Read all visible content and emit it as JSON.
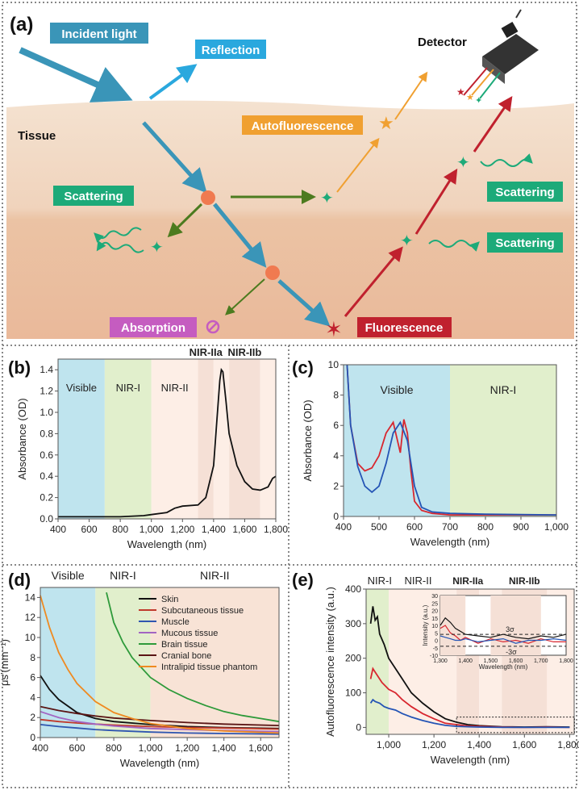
{
  "panels": {
    "a": {
      "label": "(a)",
      "incident": "Incident light",
      "reflection": "Reflection",
      "detector": "Detector",
      "tissue": "Tissue",
      "autofluorescence": "Autofluorescence",
      "scattering": "Scattering",
      "absorption": "Absorption",
      "fluorescence": "Fluorescence",
      "colors": {
        "skin_top": "#f2dcc6",
        "skin_bottom": "#ebc2a3",
        "incident": "#3a95b8",
        "reflection": "#2aa8de",
        "autofluor": "#f0a031",
        "scatter": "#1daa79",
        "absorption": "#c55cc0",
        "fluor": "#c0212e",
        "green_arrow": "#4c7b1f"
      }
    },
    "b": {
      "label": "(b)",
      "regions": [
        "Visible",
        "NIR-I",
        "NIR-II",
        "NIR-IIa",
        "NIR-IIb"
      ],
      "xlabel": "Wavelength (nm)",
      "ylabel": "Absorbance (OD)"
    },
    "c": {
      "label": "(c)",
      "regions": [
        "Visible",
        "NIR-I"
      ],
      "xlabel": "Wavelength (nm)",
      "ylabel": "Absorbance (OD)"
    },
    "d": {
      "label": "(d)",
      "regions": [
        "Visible",
        "NIR-I",
        "NIR-II"
      ],
      "xlabel": "Wavelength (nm)",
      "ylabel": "μs′(mm⁻¹)"
    },
    "e": {
      "label": "(e)",
      "regions": [
        "NIR-I",
        "NIR-II",
        "NIR-IIa",
        "NIR-IIb"
      ],
      "xlabel": "Wavelength (nm)",
      "ylabel": "Autofluorescence intensity (a.u.)",
      "inset_ylabel": "Intensity (a.u.)",
      "inset_xlabel": "Wavelength (nm)",
      "inset_marks": [
        "3σ",
        "-3σ"
      ]
    }
  },
  "chart_data": [
    {
      "panel": "b",
      "type": "line",
      "xlim": [
        400,
        1800
      ],
      "ylim": [
        0,
        1.5
      ],
      "xticks": [
        "400",
        "600",
        "800",
        "1,000",
        "1,200",
        "1,400",
        "1,600",
        "1,800"
      ],
      "yticks": [
        "0.0",
        "0.2",
        "0.4",
        "0.6",
        "0.8",
        "1.0",
        "1.2",
        "1.4"
      ],
      "region_bounds": [
        [
          400,
          700,
          "#bfe4ee"
        ],
        [
          700,
          1000,
          "#e1efcc"
        ],
        [
          1000,
          1300,
          "#fdeee6"
        ],
        [
          1300,
          1400,
          "#f5e0d6"
        ],
        [
          1400,
          1500,
          "#fdeee6"
        ],
        [
          1500,
          1700,
          "#f5e0d6"
        ],
        [
          1700,
          1800,
          "#fdeee6"
        ]
      ],
      "series": [
        {
          "color": "#111111",
          "x": [
            400,
            600,
            800,
            950,
            1000,
            1100,
            1150,
            1200,
            1300,
            1350,
            1400,
            1420,
            1440,
            1450,
            1460,
            1480,
            1500,
            1550,
            1600,
            1650,
            1700,
            1750,
            1780,
            1800
          ],
          "y": [
            0.02,
            0.02,
            0.02,
            0.03,
            0.04,
            0.06,
            0.1,
            0.12,
            0.13,
            0.2,
            0.5,
            0.9,
            1.3,
            1.4,
            1.38,
            1.1,
            0.8,
            0.5,
            0.35,
            0.28,
            0.27,
            0.3,
            0.38,
            0.4
          ]
        }
      ]
    },
    {
      "panel": "c",
      "type": "line",
      "xlim": [
        400,
        1000
      ],
      "ylim": [
        0,
        10
      ],
      "xticks": [
        "400",
        "500",
        "600",
        "700",
        "800",
        "900",
        "1,000"
      ],
      "yticks": [
        "0",
        "2",
        "4",
        "6",
        "8",
        "10"
      ],
      "region_bounds": [
        [
          400,
          700,
          "#bfe4ee"
        ],
        [
          700,
          1000,
          "#e1efcc"
        ]
      ],
      "series": [
        {
          "color": "#d8262e",
          "x": [
            410,
            420,
            440,
            460,
            480,
            500,
            520,
            540,
            550,
            560,
            570,
            580,
            590,
            600,
            620,
            650,
            700,
            800,
            1000
          ],
          "y": [
            10,
            6,
            3.5,
            3,
            3.2,
            4,
            5.5,
            6.2,
            5.2,
            4.2,
            6.4,
            5.5,
            3,
            1,
            0.4,
            0.2,
            0.1,
            0.1,
            0.1
          ]
        },
        {
          "color": "#2454b5",
          "x": [
            410,
            420,
            440,
            460,
            480,
            500,
            520,
            540,
            560,
            580,
            600,
            620,
            650,
            700,
            800,
            1000
          ],
          "y": [
            10,
            6,
            3.3,
            2,
            1.6,
            2,
            3.5,
            5.5,
            6.2,
            5,
            2,
            0.6,
            0.3,
            0.2,
            0.15,
            0.1
          ]
        }
      ]
    },
    {
      "panel": "d",
      "type": "line",
      "xlim": [
        400,
        1700
      ],
      "ylim": [
        0,
        15
      ],
      "xticks": [
        "400",
        "600",
        "800",
        "1,000",
        "1,200",
        "1,400",
        "1,600"
      ],
      "yticks": [
        "0",
        "2",
        "4",
        "6",
        "8",
        "10",
        "12",
        "14"
      ],
      "region_bounds": [
        [
          400,
          700,
          "#bfe4ee"
        ],
        [
          700,
          1000,
          "#e1efcc"
        ],
        [
          1000,
          1700,
          "#f8e3d6"
        ]
      ],
      "series": [
        {
          "name": "Skin",
          "color": "#111111",
          "x": [
            400,
            450,
            500,
            600,
            700,
            800,
            1000,
            1200,
            1400,
            1700
          ],
          "y": [
            6.2,
            4.8,
            3.8,
            2.5,
            1.9,
            1.6,
            1.3,
            1.1,
            1.0,
            0.9
          ]
        },
        {
          "name": "Subcutaneous tissue",
          "color": "#c0392b",
          "x": [
            400,
            500,
            600,
            700,
            800,
            1000,
            1200,
            1400,
            1700
          ],
          "y": [
            1.8,
            1.6,
            1.45,
            1.35,
            1.25,
            1.1,
            1.0,
            0.95,
            0.85
          ]
        },
        {
          "name": "Muscle",
          "color": "#2f56b0",
          "x": [
            400,
            500,
            600,
            700,
            800,
            1000,
            1200,
            1400,
            1700
          ],
          "y": [
            1.3,
            1.1,
            0.95,
            0.8,
            0.7,
            0.55,
            0.45,
            0.4,
            0.35
          ]
        },
        {
          "name": "Mucous tissue",
          "color": "#a265c2",
          "x": [
            400,
            500,
            600,
            700,
            800,
            1000,
            1200,
            1400,
            1700
          ],
          "y": [
            2.6,
            2.0,
            1.6,
            1.35,
            1.15,
            0.9,
            0.8,
            0.7,
            0.6
          ]
        },
        {
          "name": "Brain tissue",
          "color": "#2e9a3a",
          "x": [
            760,
            800,
            850,
            900,
            1000,
            1100,
            1200,
            1300,
            1400,
            1500,
            1600,
            1700
          ],
          "y": [
            14.5,
            11.5,
            9.5,
            8,
            6,
            4.8,
            3.9,
            3.2,
            2.6,
            2.2,
            1.9,
            1.6
          ]
        },
        {
          "name": "Cranial bone",
          "color": "#5a1515",
          "x": [
            400,
            500,
            600,
            700,
            800,
            1000,
            1200,
            1400,
            1700
          ],
          "y": [
            3.1,
            2.7,
            2.4,
            2.15,
            1.95,
            1.7,
            1.5,
            1.35,
            1.2
          ]
        },
        {
          "name": "Intralipid tissue phantom",
          "color": "#ef8a21",
          "x": [
            400,
            450,
            500,
            550,
            600,
            700,
            800,
            900,
            1000,
            1200,
            1400,
            1700
          ],
          "y": [
            14.2,
            11,
            8.5,
            6.8,
            5.4,
            3.6,
            2.5,
            1.9,
            1.4,
            0.9,
            0.65,
            0.45
          ]
        }
      ]
    },
    {
      "panel": "e",
      "type": "line",
      "xlim": [
        900,
        1820
      ],
      "ylim": [
        -20,
        400
      ],
      "xticks": [
        "1,000",
        "1,200",
        "1,400",
        "1,600",
        "1,800"
      ],
      "xtick_values": [
        1000,
        1200,
        1400,
        1600,
        1800
      ],
      "yticks": [
        "0",
        "100",
        "200",
        "300",
        "400"
      ],
      "region_bounds": [
        [
          900,
          1000,
          "#e1efcc"
        ],
        [
          1000,
          1300,
          "#fdeee6"
        ],
        [
          1300,
          1400,
          "#f5e0d6"
        ],
        [
          1400,
          1500,
          "#fdeee6"
        ],
        [
          1500,
          1700,
          "#f5e0d6"
        ],
        [
          1700,
          1820,
          "#fdeee6"
        ]
      ],
      "series": [
        {
          "color": "#111111",
          "x": [
            920,
            930,
            940,
            950,
            960,
            980,
            1000,
            1030,
            1060,
            1100,
            1150,
            1200,
            1250,
            1300,
            1350,
            1400,
            1500,
            1600,
            1700,
            1800
          ],
          "y": [
            300,
            350,
            310,
            320,
            270,
            240,
            200,
            170,
            140,
            100,
            70,
            45,
            25,
            15,
            8,
            5,
            2,
            1,
            2,
            1
          ]
        },
        {
          "color": "#d8262e",
          "x": [
            920,
            930,
            940,
            950,
            970,
            1000,
            1030,
            1060,
            1100,
            1150,
            1200,
            1250,
            1300,
            1350,
            1400,
            1500,
            1600,
            1700,
            1800
          ],
          "y": [
            140,
            170,
            160,
            150,
            130,
            110,
            100,
            80,
            60,
            40,
            25,
            12,
            8,
            4,
            3,
            1,
            0,
            1,
            0
          ]
        },
        {
          "color": "#2454b5",
          "x": [
            920,
            930,
            940,
            960,
            980,
            1000,
            1030,
            1060,
            1100,
            1150,
            1200,
            1250,
            1300,
            1350,
            1400,
            1500,
            1600,
            1700,
            1800
          ],
          "y": [
            70,
            80,
            75,
            70,
            60,
            55,
            50,
            40,
            30,
            20,
            12,
            6,
            3,
            2,
            1,
            0,
            0,
            0,
            0
          ]
        }
      ],
      "inset": {
        "xlim": [
          1300,
          1800
        ],
        "ylim": [
          -10,
          30
        ],
        "xticks": [
          "1,300",
          "1,400",
          "1,500",
          "1,600",
          "1,700",
          "1,800"
        ],
        "yticks": [
          "-10",
          "-5",
          "0",
          "5",
          "10",
          "15",
          "20",
          "25",
          "30"
        ],
        "sigma": 4,
        "series": [
          {
            "color": "#111111",
            "x": [
              1300,
              1320,
              1340,
              1360,
              1380,
              1400,
              1450,
              1500,
              1550,
              1600,
              1650,
              1700,
              1750,
              1800
            ],
            "y": [
              10,
              15,
              12,
              8,
              6,
              4,
              3,
              2,
              4,
              2,
              1,
              3,
              2,
              4
            ]
          },
          {
            "color": "#d8262e",
            "x": [
              1300,
              1320,
              1340,
              1360,
              1380,
              1400,
              1450,
              1500,
              1550,
              1600,
              1650,
              1700,
              1750,
              1800
            ],
            "y": [
              8,
              10,
              5,
              3,
              0,
              2,
              -2,
              1,
              -1,
              0,
              -2,
              1,
              -1,
              -1
            ]
          },
          {
            "color": "#2454b5",
            "x": [
              1300,
              1320,
              1340,
              1360,
              1380,
              1400,
              1450,
              1500,
              1550,
              1600,
              1650,
              1700,
              1750,
              1800
            ],
            "y": [
              3,
              2,
              1,
              0,
              0,
              1,
              -1,
              0,
              1,
              -2,
              0,
              0,
              1,
              0
            ]
          }
        ]
      }
    }
  ]
}
